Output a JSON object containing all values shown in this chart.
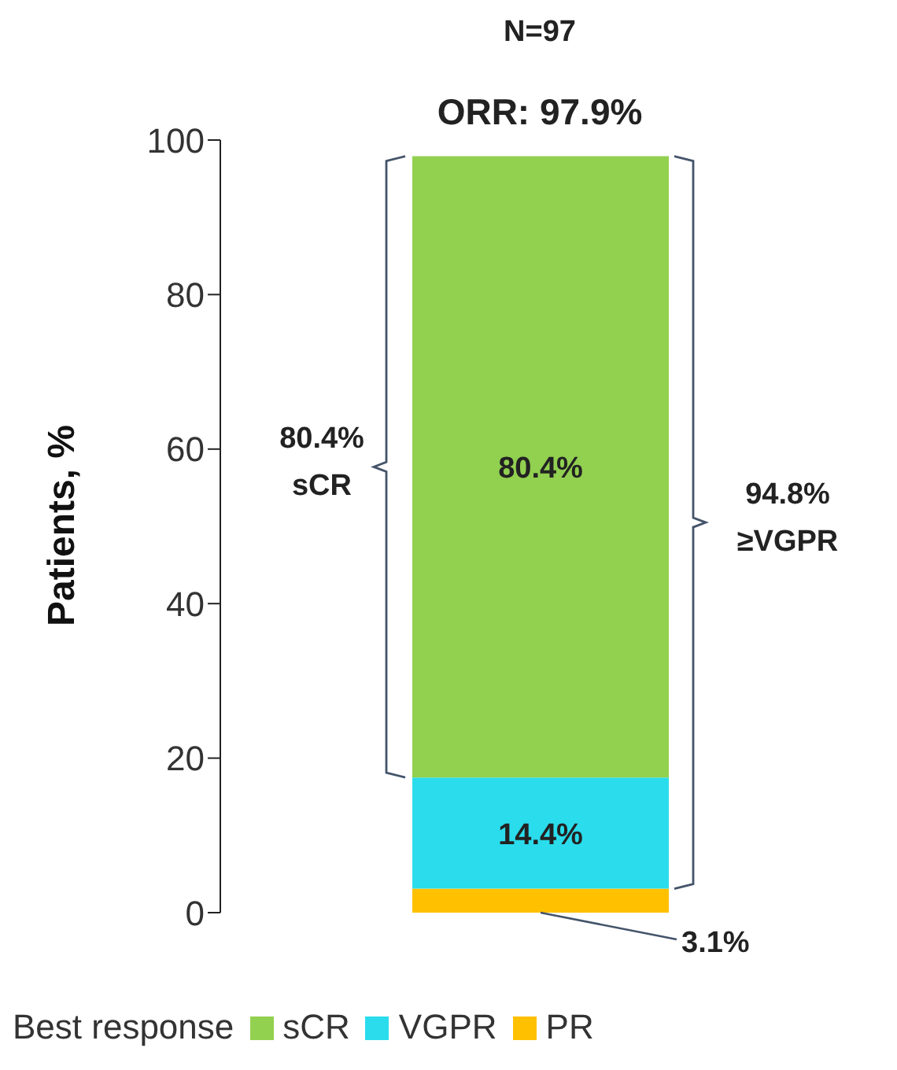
{
  "chart_data": {
    "type": "bar",
    "title": "N=97",
    "subtitle": "ORR: 97.9%",
    "ylabel": "Patients, %",
    "legend_title": "Best response",
    "legend": "bottom",
    "stacked": true,
    "categories": [
      null
    ],
    "series": [
      {
        "name": "PR",
        "color": "#ffc000",
        "values": [
          3.1
        ],
        "value_labels": [
          "3.1%"
        ]
      },
      {
        "name": "VGPR",
        "color": "#2adcec",
        "values": [
          14.4
        ],
        "value_labels": [
          "14.4%"
        ]
      },
      {
        "name": "sCR",
        "color": "#92d050",
        "values": [
          80.4
        ],
        "value_labels": [
          "80.4%"
        ]
      }
    ],
    "ylim": [
      0,
      100
    ],
    "yticks": [
      0,
      20,
      40,
      60,
      80,
      100
    ],
    "grid": false,
    "tick_labels": "y",
    "annotations": [
      "80.4%\nsCR",
      "94.8%\n≥VGPR"
    ]
  }
}
